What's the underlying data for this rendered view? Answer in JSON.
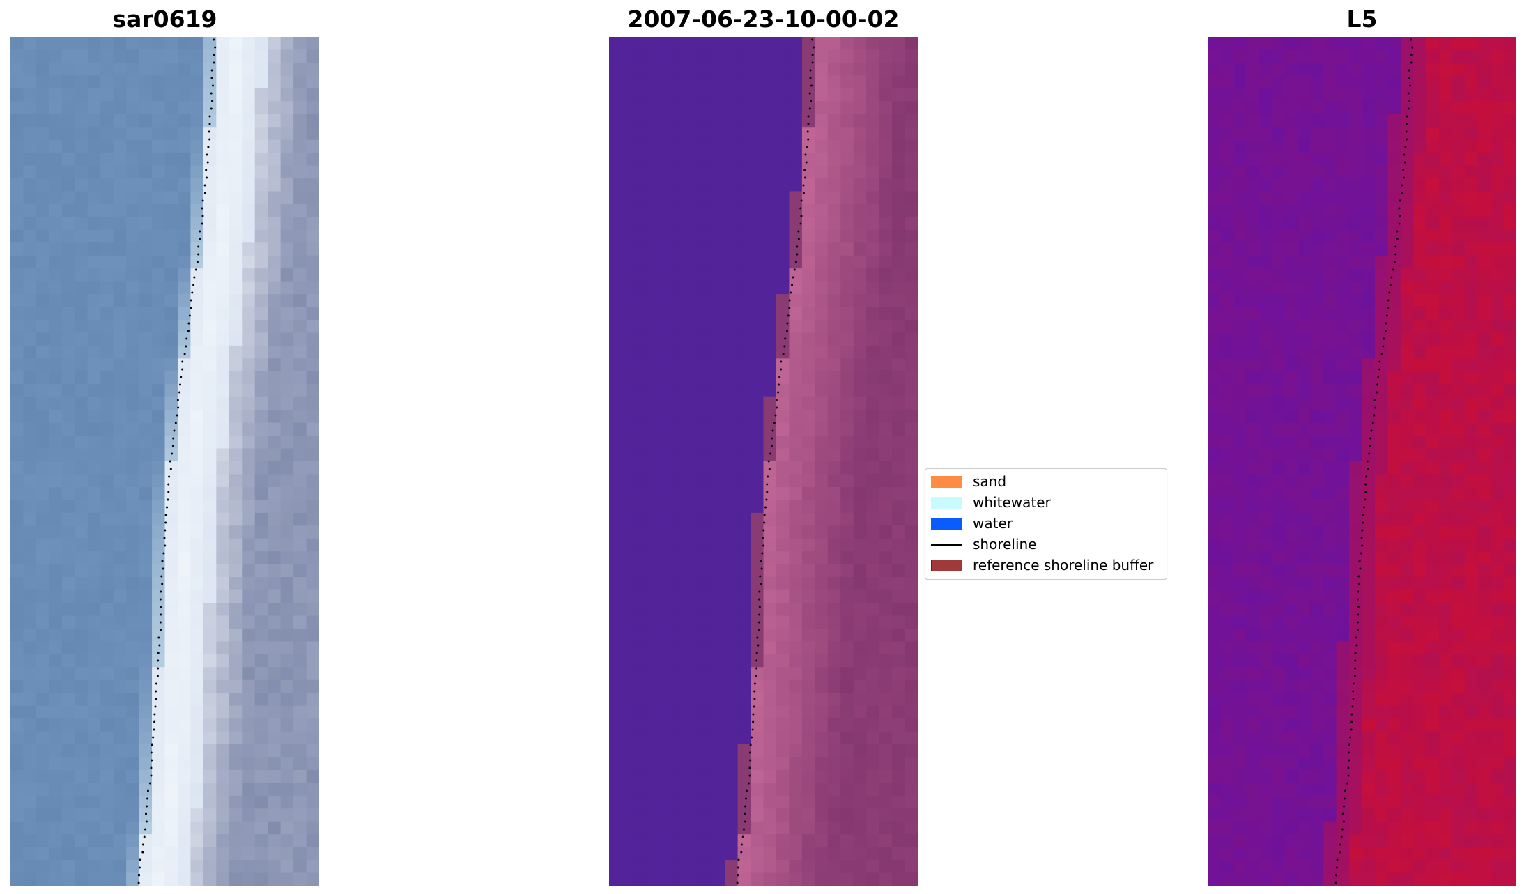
{
  "panels": [
    {
      "title": "sar0619"
    },
    {
      "title": "2007-06-23-10-00-02"
    },
    {
      "title": "L5"
    }
  ],
  "legend": {
    "items": [
      {
        "label": "sand",
        "color": "#ff8c42",
        "kind": "patch"
      },
      {
        "label": "whitewater",
        "color": "#c8fbff",
        "kind": "patch"
      },
      {
        "label": "water",
        "color": "#0a5cff",
        "kind": "patch"
      },
      {
        "label": "shoreline",
        "color": "#000000",
        "kind": "line"
      },
      {
        "label": "reference shoreline buffer",
        "color": "#a0393a",
        "kind": "patch"
      }
    ]
  },
  "colors": {
    "rgb_water": "#6a8db8",
    "rgb_whitewater": "#eef4fa",
    "class_water": "#53239a",
    "class_buffer_light": "#bd6494",
    "class_buffer_dark": "#8a3b73",
    "index_low": "#6a12a0",
    "index_high": "#c70f3a",
    "shoreline": "#000000"
  }
}
